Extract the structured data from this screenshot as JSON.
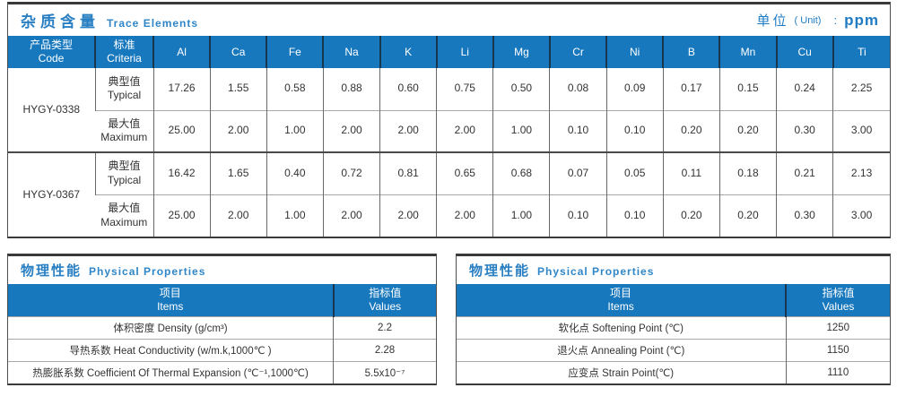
{
  "colors": {
    "header_bg": "#1878be",
    "header_divider": "#17374f",
    "title_blue": "#2a7fc2",
    "border_dark": "#4a4a4a",
    "border_light": "#a8a8a8"
  },
  "trace": {
    "title_zh": "杂质含量",
    "title_en": "Trace Elements",
    "unit_zh": "单位",
    "unit_en": "( Unit)",
    "unit_sep": ":",
    "unit_value": "ppm",
    "col_product_zh": "产品类型",
    "col_product_en": "Code",
    "col_criteria_zh": "标准",
    "col_criteria_en": "Criteria",
    "elements": [
      "Al",
      "Ca",
      "Fe",
      "Na",
      "K",
      "Li",
      "Mg",
      "Cr",
      "Ni",
      "B",
      "Mn",
      "Cu",
      "Ti"
    ],
    "groups": [
      {
        "code": "HYGY-0338",
        "rows": [
          {
            "criteria_zh": "典型值",
            "criteria_en": "Typical",
            "values": [
              "17.26",
              "1.55",
              "0.58",
              "0.88",
              "0.60",
              "0.75",
              "0.50",
              "0.08",
              "0.09",
              "0.17",
              "0.15",
              "0.24",
              "2.25"
            ]
          },
          {
            "criteria_zh": "最大值",
            "criteria_en": "Maximum",
            "values": [
              "25.00",
              "2.00",
              "1.00",
              "2.00",
              "2.00",
              "2.00",
              "1.00",
              "0.10",
              "0.10",
              "0.20",
              "0.20",
              "0.30",
              "3.00"
            ]
          }
        ]
      },
      {
        "code": "HYGY-0367",
        "rows": [
          {
            "criteria_zh": "典型值",
            "criteria_en": "Typical",
            "values": [
              "16.42",
              "1.65",
              "0.40",
              "0.72",
              "0.81",
              "0.65",
              "0.68",
              "0.07",
              "0.05",
              "0.11",
              "0.18",
              "0.21",
              "2.13"
            ]
          },
          {
            "criteria_zh": "最大值",
            "criteria_en": "Maximum",
            "values": [
              "25.00",
              "2.00",
              "1.00",
              "2.00",
              "2.00",
              "2.00",
              "1.00",
              "0.10",
              "0.10",
              "0.20",
              "0.20",
              "0.30",
              "3.00"
            ]
          }
        ]
      }
    ]
  },
  "physical_left": {
    "title_zh": "物理性能",
    "title_en": "Physical Properties",
    "col_items_zh": "项目",
    "col_items_en": "Items",
    "col_values_zh": "指标值",
    "col_values_en": "Values",
    "rows": [
      {
        "item": "体积密度 Density (g/cm³)",
        "value": "2.2"
      },
      {
        "item": "导热系数 Heat Conductivity (w/m.k,1000℃ )",
        "value": "2.28"
      },
      {
        "item": "热膨胀系数 Coefficient Of Thermal Expansion (℃⁻¹,1000℃)",
        "value": "5.5x10⁻⁷"
      }
    ]
  },
  "physical_right": {
    "title_zh": "物理性能",
    "title_en": "Physical Properties",
    "col_items_zh": "项目",
    "col_items_en": "Items",
    "col_values_zh": "指标值",
    "col_values_en": "Values",
    "rows": [
      {
        "item": "软化点 Softening Point (℃)",
        "value": "1250"
      },
      {
        "item": "退火点 Annealing Point (℃)",
        "value": "1150"
      },
      {
        "item": "应变点 Strain Point(℃)",
        "value": "1110"
      }
    ]
  }
}
